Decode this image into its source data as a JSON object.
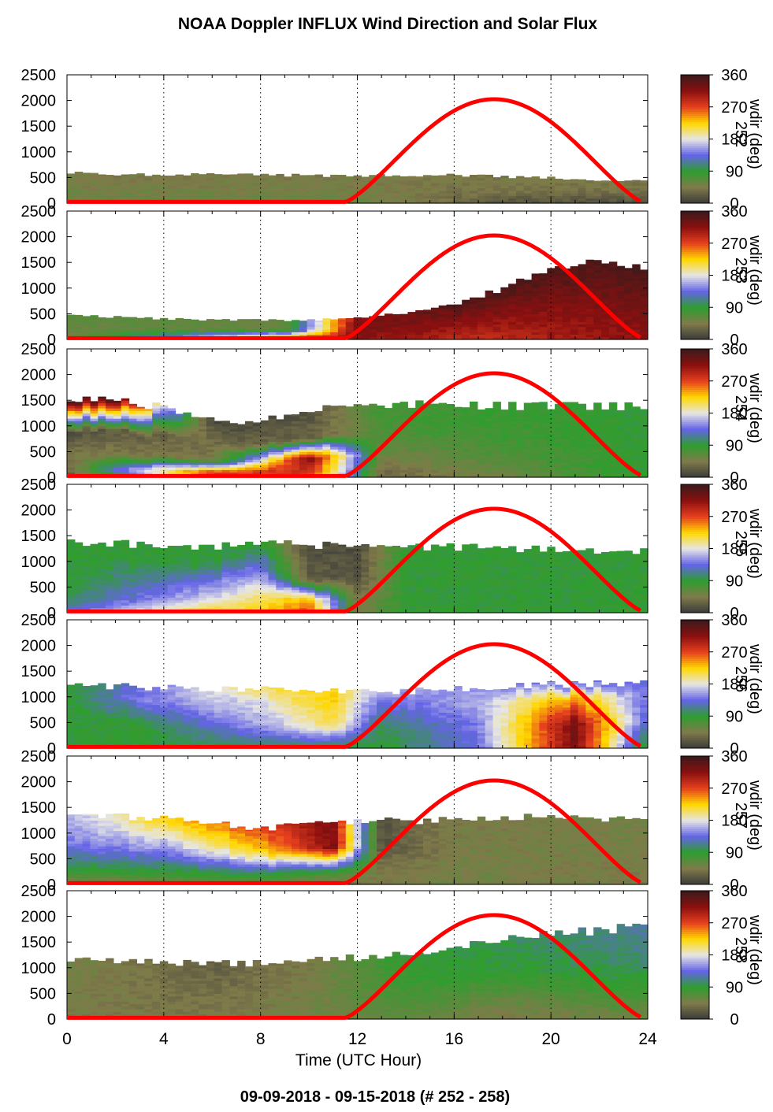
{
  "figure": {
    "title": "NOAA Doppler INFLUX Wind Direction and Solar Flux",
    "date_range": "09-09-2018 - 09-15-2018   (# 252 - 258)"
  },
  "chart_data": {
    "type": "heatmap",
    "xlabel": "Time (UTC Hour)",
    "xlim": [
      0,
      24
    ],
    "x_ticks": [
      "0",
      "4",
      "8",
      "12",
      "16",
      "20",
      "24"
    ],
    "ylim": [
      0,
      2500
    ],
    "y_ticks": [
      "0",
      "500",
      "1000",
      "1500",
      "2000",
      "2500"
    ],
    "colorbar": {
      "label": "wdir (deg)",
      "ticks": [
        "0",
        "90",
        "180",
        "270",
        "360"
      ],
      "colormap": [
        "#3a3a3a",
        "#807a4a",
        "#2e9e2e",
        "#6464e6",
        "#e6e6e6",
        "#ffd700",
        "#e6401e",
        "#8b1010",
        "#3a1a1a"
      ]
    },
    "solar_flux": {
      "color": "#ff0000",
      "sunrise_hour": 11.5,
      "sunset_hour": 23.8,
      "peak_hour": 17.7,
      "peak_value": 2000
    },
    "panels": [
      {
        "doy_label": "252",
        "top_profile": [
          [
            0,
            600
          ],
          [
            4,
            560
          ],
          [
            8,
            560
          ],
          [
            12,
            540
          ],
          [
            16,
            560
          ],
          [
            20,
            500
          ],
          [
            22,
            420
          ],
          [
            23.8,
            440
          ]
        ],
        "keys": [
          [
            0,
            [
              [
                0,
                1.3
              ],
              [
                0.5,
                1.1
              ],
              [
                1,
                1.0
              ]
            ]
          ],
          [
            12,
            [
              [
                0,
                1.3
              ],
              [
                0.5,
                1.1
              ],
              [
                1,
                1.0
              ]
            ]
          ],
          [
            18,
            [
              [
                0,
                0.4
              ],
              [
                0.5,
                0.9
              ],
              [
                1,
                1.0
              ]
            ]
          ],
          [
            23.8,
            [
              [
                0,
                0.3
              ],
              [
                0.5,
                0.8
              ],
              [
                1,
                1.0
              ]
            ]
          ]
        ]
      },
      {
        "doy_label": "253",
        "top_profile": [
          [
            0,
            480
          ],
          [
            4,
            400
          ],
          [
            8,
            380
          ],
          [
            10,
            380
          ],
          [
            12,
            420
          ],
          [
            14,
            520
          ],
          [
            16,
            700
          ],
          [
            18,
            1000
          ],
          [
            20,
            1400
          ],
          [
            22,
            1500
          ],
          [
            23.8,
            1450
          ]
        ],
        "keys": [
          [
            0,
            [
              [
                0,
                1.1
              ],
              [
                0.5,
                1.3
              ],
              [
                1,
                1.5
              ]
            ]
          ],
          [
            9,
            [
              [
                0,
                6.8
              ],
              [
                0.5,
                1.4
              ],
              [
                1,
                1.2
              ]
            ]
          ],
          [
            12,
            [
              [
                0,
                7.0
              ],
              [
                0.5,
                7.2
              ],
              [
                1,
                7.1
              ]
            ]
          ],
          [
            17,
            [
              [
                0,
                6.4
              ],
              [
                0.5,
                7.0
              ],
              [
                1,
                7.8
              ]
            ]
          ],
          [
            23.8,
            [
              [
                0,
                7.0
              ],
              [
                0.5,
                7.3
              ],
              [
                1,
                7.8
              ]
            ]
          ]
        ]
      },
      {
        "doy_label": "254",
        "top_profile": [
          [
            0,
            1500
          ],
          [
            2,
            1500
          ],
          [
            4,
            1400
          ],
          [
            7,
            1000
          ],
          [
            9,
            1200
          ],
          [
            11,
            1400
          ],
          [
            14,
            1450
          ],
          [
            18,
            1400
          ],
          [
            23.8,
            1400
          ]
        ],
        "keys": [
          [
            0,
            [
              [
                0,
                0.3
              ],
              [
                0.1,
                0.6
              ],
              [
                0.3,
                1.0
              ],
              [
                0.6,
                0.3
              ],
              [
                1,
                7.8
              ]
            ]
          ],
          [
            2,
            [
              [
                0,
                1.8
              ],
              [
                0.1,
                3.0
              ],
              [
                0.3,
                1.0
              ],
              [
                0.6,
                0.5
              ],
              [
                1,
                7.8
              ]
            ]
          ],
          [
            6,
            [
              [
                0,
                6.3
              ],
              [
                0.1,
                6.0
              ],
              [
                0.3,
                1.0
              ],
              [
                0.6,
                0.8
              ],
              [
                1,
                0.2
              ]
            ]
          ],
          [
            10,
            [
              [
                0,
                6.0
              ],
              [
                0.1,
                6.4
              ],
              [
                0.3,
                7.2
              ],
              [
                0.6,
                0.6
              ],
              [
                1,
                0.4
              ]
            ]
          ],
          [
            13,
            [
              [
                0,
                0.6
              ],
              [
                0.1,
                0.8
              ],
              [
                0.3,
                1.2
              ],
              [
                0.6,
                1.6
              ],
              [
                1,
                1.8
              ]
            ]
          ],
          [
            23.8,
            [
              [
                0,
                2.0
              ],
              [
                0.1,
                2.0
              ],
              [
                0.3,
                2.0
              ],
              [
                0.6,
                2.0
              ],
              [
                1,
                2.0
              ]
            ]
          ]
        ]
      },
      {
        "doy_label": "255",
        "top_profile": [
          [
            0,
            1400
          ],
          [
            3,
            1350
          ],
          [
            6,
            1300
          ],
          [
            9,
            1350
          ],
          [
            12,
            1300
          ],
          [
            16,
            1300
          ],
          [
            20,
            1250
          ],
          [
            23.8,
            1220
          ]
        ],
        "keys": [
          [
            0,
            [
              [
                0,
                3.0
              ],
              [
                0.2,
                2.2
              ],
              [
                0.5,
                2.0
              ],
              [
                1,
                2.0
              ]
            ]
          ],
          [
            6,
            [
              [
                0,
                5.0
              ],
              [
                0.2,
                4.0
              ],
              [
                0.5,
                3.0
              ],
              [
                0.8,
                2.0
              ],
              [
                1,
                2.0
              ]
            ]
          ],
          [
            8,
            [
              [
                0,
                5.0
              ],
              [
                0.2,
                4.6
              ],
              [
                0.5,
                3.6
              ],
              [
                0.8,
                2.6
              ],
              [
                1,
                2.0
              ]
            ]
          ],
          [
            10,
            [
              [
                0,
                6.0
              ],
              [
                0.2,
                5.2
              ],
              [
                0.5,
                0.6
              ],
              [
                0.8,
                0.4
              ],
              [
                1,
                0.3
              ]
            ]
          ],
          [
            12,
            [
              [
                0,
                1.0
              ],
              [
                0.2,
                1.0
              ],
              [
                0.5,
                0.4
              ],
              [
                1,
                0.3
              ]
            ]
          ],
          [
            14,
            [
              [
                0,
                2.0
              ],
              [
                0.5,
                2.0
              ],
              [
                1,
                2.0
              ]
            ]
          ],
          [
            23.8,
            [
              [
                0,
                2.0
              ],
              [
                0.5,
                2.0
              ],
              [
                1,
                2.0
              ]
            ]
          ]
        ]
      },
      {
        "doy_label": "256",
        "top_profile": [
          [
            0,
            1250
          ],
          [
            4,
            1200
          ],
          [
            8,
            1150
          ],
          [
            12,
            1100
          ],
          [
            16,
            1150
          ],
          [
            20,
            1250
          ],
          [
            23.8,
            1300
          ]
        ],
        "keys": [
          [
            0,
            [
              [
                0,
                2.0
              ],
              [
                0.5,
                2.0
              ],
              [
                1,
                2.0
              ]
            ]
          ],
          [
            3,
            [
              [
                0,
                2.0
              ],
              [
                0.4,
                2.0
              ],
              [
                0.8,
                3.2
              ],
              [
                1,
                3.0
              ]
            ]
          ],
          [
            8,
            [
              [
                0,
                2.2
              ],
              [
                0.4,
                3.5
              ],
              [
                0.8,
                4.0
              ],
              [
                1,
                4.6
              ]
            ]
          ],
          [
            11,
            [
              [
                0,
                2.0
              ],
              [
                0.4,
                4.6
              ],
              [
                0.8,
                5.0
              ],
              [
                1,
                5.0
              ]
            ]
          ],
          [
            13,
            [
              [
                0,
                2.0
              ],
              [
                0.4,
                2.2
              ],
              [
                0.8,
                3.0
              ],
              [
                1,
                3.5
              ]
            ]
          ],
          [
            17,
            [
              [
                0,
                3.0
              ],
              [
                0.4,
                3.2
              ],
              [
                0.8,
                3.6
              ],
              [
                1,
                3.4
              ]
            ]
          ],
          [
            21,
            [
              [
                0,
                7.2
              ],
              [
                0.4,
                7.2
              ],
              [
                0.8,
                5.2
              ],
              [
                1,
                3.0
              ]
            ]
          ],
          [
            23.8,
            [
              [
                0,
                2.0
              ],
              [
                0.4,
                3.0
              ],
              [
                0.8,
                3.2
              ],
              [
                1,
                3.0
              ]
            ]
          ]
        ]
      },
      {
        "doy_label": "257",
        "top_profile": [
          [
            0,
            1300
          ],
          [
            2,
            1350
          ],
          [
            4,
            1300
          ],
          [
            8,
            1100
          ],
          [
            12,
            1250
          ],
          [
            14,
            1250
          ],
          [
            18,
            1300
          ],
          [
            20,
            1350
          ],
          [
            23.8,
            1250
          ]
        ],
        "keys": [
          [
            0,
            [
              [
                0,
                0.8
              ],
              [
                0.2,
                2.0
              ],
              [
                0.6,
                3.2
              ],
              [
                1,
                3.6
              ]
            ]
          ],
          [
            4,
            [
              [
                0,
                1.2
              ],
              [
                0.2,
                2.0
              ],
              [
                0.6,
                3.6
              ],
              [
                1,
                5.0
              ]
            ]
          ],
          [
            8,
            [
              [
                0,
                1.2
              ],
              [
                0.2,
                2.2
              ],
              [
                0.6,
                5.0
              ],
              [
                1,
                6.0
              ]
            ]
          ],
          [
            11,
            [
              [
                0,
                0.8
              ],
              [
                0.2,
                1.8
              ],
              [
                0.6,
                7.2
              ],
              [
                1,
                7.2
              ]
            ]
          ],
          [
            13,
            [
              [
                0,
                1.0
              ],
              [
                0.2,
                1.0
              ],
              [
                0.6,
                0.4
              ],
              [
                1,
                0.4
              ]
            ]
          ],
          [
            16,
            [
              [
                0,
                1.2
              ],
              [
                0.5,
                1.1
              ],
              [
                1,
                1.0
              ]
            ]
          ],
          [
            23.8,
            [
              [
                0,
                1.0
              ],
              [
                0.5,
                1.1
              ],
              [
                1,
                1.2
              ]
            ]
          ]
        ]
      },
      {
        "doy_label": "258",
        "top_profile": [
          [
            0,
            1200
          ],
          [
            4,
            1100
          ],
          [
            8,
            1100
          ],
          [
            10,
            1200
          ],
          [
            12,
            1200
          ],
          [
            16,
            1400
          ],
          [
            20,
            1700
          ],
          [
            23.8,
            1800
          ]
        ],
        "keys": [
          [
            0,
            [
              [
                0,
                1.0
              ],
              [
                0.5,
                1.1
              ],
              [
                1,
                1.2
              ]
            ]
          ],
          [
            6,
            [
              [
                0,
                1.0
              ],
              [
                0.5,
                0.8
              ],
              [
                1,
                0.6
              ]
            ]
          ],
          [
            10,
            [
              [
                0,
                1.2
              ],
              [
                0.5,
                1.1
              ],
              [
                1,
                1.0
              ]
            ]
          ],
          [
            14,
            [
              [
                0,
                1.4
              ],
              [
                0.5,
                1.8
              ],
              [
                1,
                2.0
              ]
            ]
          ],
          [
            18,
            [
              [
                0,
                1.0
              ],
              [
                0.3,
                1.4
              ],
              [
                0.6,
                2.0
              ],
              [
                1,
                2.2
              ]
            ]
          ],
          [
            23.8,
            [
              [
                0,
                1.2
              ],
              [
                0.5,
                2.2
              ],
              [
                1,
                2.6
              ]
            ]
          ]
        ]
      }
    ]
  }
}
